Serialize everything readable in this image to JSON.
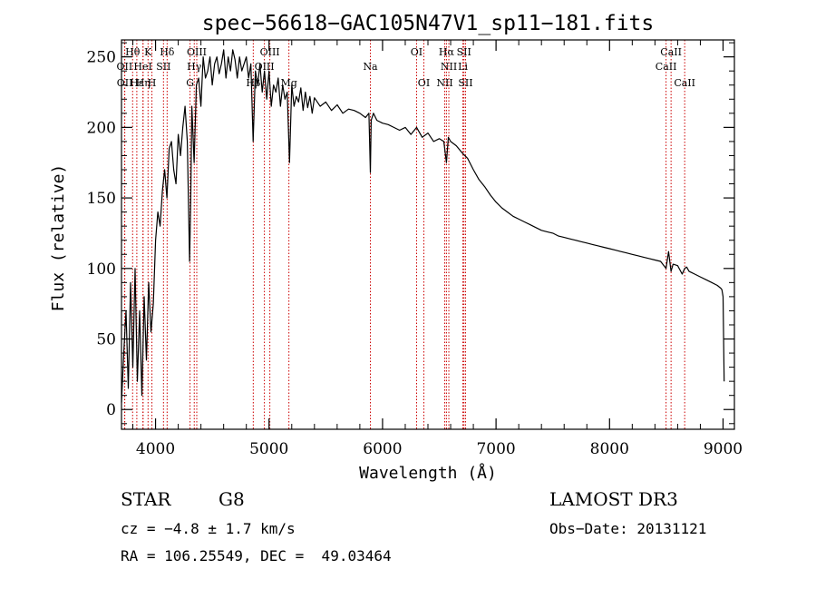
{
  "chart_data": {
    "type": "line",
    "title": "spec−56618−GAC105N47V1_sp11−181.fits",
    "xlabel": "Wavelength (Å)",
    "ylabel": "Flux (relative)",
    "xlim": [
      3700,
      9100
    ],
    "ylim": [
      -14,
      262
    ],
    "x_ticks": [
      {
        "value": 4000,
        "label": "4000"
      },
      {
        "value": 5000,
        "label": "5000"
      },
      {
        "value": 6000,
        "label": "6000"
      },
      {
        "value": 7000,
        "label": "7000"
      },
      {
        "value": 8000,
        "label": "8000"
      },
      {
        "value": 9000,
        "label": "9000"
      }
    ],
    "y_ticks": [
      {
        "value": 0,
        "label": "0"
      },
      {
        "value": 50,
        "label": "50"
      },
      {
        "value": 100,
        "label": "100"
      },
      {
        "value": 150,
        "label": "150"
      },
      {
        "value": 200,
        "label": "200"
      },
      {
        "value": 250,
        "label": "250"
      }
    ],
    "series": [
      {
        "name": "flux",
        "color": "#000000",
        "x": [
          3700,
          3720,
          3740,
          3760,
          3780,
          3800,
          3820,
          3840,
          3860,
          3880,
          3900,
          3920,
          3940,
          3960,
          3980,
          4000,
          4020,
          4040,
          4060,
          4080,
          4100,
          4120,
          4140,
          4160,
          4180,
          4200,
          4220,
          4240,
          4260,
          4280,
          4300,
          4310,
          4320,
          4340,
          4360,
          4380,
          4400,
          4420,
          4440,
          4460,
          4480,
          4500,
          4520,
          4540,
          4560,
          4580,
          4600,
          4620,
          4640,
          4660,
          4680,
          4700,
          4720,
          4740,
          4760,
          4780,
          4800,
          4820,
          4840,
          4860,
          4880,
          4900,
          4920,
          4940,
          4960,
          4980,
          5000,
          5020,
          5040,
          5060,
          5080,
          5100,
          5120,
          5140,
          5160,
          5180,
          5200,
          5220,
          5240,
          5260,
          5280,
          5300,
          5320,
          5340,
          5360,
          5380,
          5400,
          5450,
          5500,
          5550,
          5600,
          5650,
          5700,
          5750,
          5800,
          5850,
          5880,
          5893,
          5900,
          5920,
          5950,
          6000,
          6050,
          6100,
          6150,
          6200,
          6250,
          6300,
          6350,
          6400,
          6450,
          6500,
          6540,
          6563,
          6580,
          6600,
          6650,
          6700,
          6750,
          6800,
          6850,
          6900,
          6950,
          7000,
          7050,
          7100,
          7150,
          7200,
          7250,
          7300,
          7350,
          7400,
          7450,
          7500,
          7550,
          7600,
          7650,
          7700,
          7750,
          7800,
          7850,
          7900,
          7950,
          8000,
          8050,
          8100,
          8150,
          8200,
          8250,
          8300,
          8350,
          8400,
          8450,
          8498,
          8520,
          8542,
          8560,
          8600,
          8640,
          8662,
          8680,
          8700,
          8750,
          8800,
          8850,
          8900,
          8950,
          8980,
          8990,
          9000,
          9010
        ],
        "values": [
          5,
          40,
          70,
          15,
          90,
          30,
          100,
          20,
          70,
          10,
          80,
          35,
          90,
          55,
          75,
          120,
          140,
          130,
          155,
          170,
          150,
          185,
          190,
          170,
          160,
          195,
          180,
          200,
          215,
          190,
          105,
          150,
          215,
          175,
          230,
          235,
          215,
          250,
          235,
          240,
          250,
          230,
          245,
          250,
          238,
          245,
          255,
          235,
          250,
          240,
          255,
          248,
          235,
          250,
          240,
          245,
          250,
          235,
          245,
          190,
          240,
          230,
          245,
          225,
          240,
          220,
          240,
          215,
          230,
          225,
          235,
          215,
          230,
          220,
          225,
          175,
          230,
          215,
          222,
          218,
          228,
          212,
          225,
          214,
          222,
          210,
          221,
          215,
          218,
          212,
          216,
          210,
          213,
          212,
          210,
          207,
          210,
          168,
          205,
          210,
          205,
          203,
          202,
          200,
          198,
          200,
          195,
          200,
          193,
          196,
          190,
          192,
          190,
          175,
          193,
          190,
          187,
          182,
          178,
          170,
          163,
          158,
          152,
          147,
          143,
          140,
          137,
          135,
          133,
          131,
          129,
          127,
          126,
          125,
          123,
          122,
          121,
          120,
          119,
          118,
          117,
          116,
          115,
          114,
          113,
          112,
          111,
          110,
          109,
          108,
          107,
          106,
          105,
          100,
          112,
          98,
          103,
          102,
          96,
          100,
          101,
          98,
          96,
          94,
          92,
          90,
          88,
          86,
          85,
          80,
          20
        ]
      }
    ],
    "line_labels": [
      {
        "text": "Hθ",
        "x": 3798,
        "row": 1
      },
      {
        "text": "K",
        "x": 3934,
        "row": 1
      },
      {
        "text": "Hδ",
        "x": 4102,
        "row": 1
      },
      {
        "text": "OIII",
        "x": 4363,
        "row": 1
      },
      {
        "text": "OIII",
        "x": 5007,
        "row": 1
      },
      {
        "text": "OI",
        "x": 6300,
        "row": 1
      },
      {
        "text": "Hα",
        "x": 6563,
        "row": 1
      },
      {
        "text": "SII",
        "x": 6717,
        "row": 1
      },
      {
        "text": "CaII",
        "x": 8542,
        "row": 1
      },
      {
        "text": "OII",
        "x": 3727,
        "row": 2
      },
      {
        "text": "HeI",
        "x": 3889,
        "row": 2
      },
      {
        "text": "SII",
        "x": 4070,
        "row": 2
      },
      {
        "text": "Hγ",
        "x": 4341,
        "row": 2
      },
      {
        "text": "OIII",
        "x": 4959,
        "row": 2
      },
      {
        "text": "Na",
        "x": 5893,
        "row": 2
      },
      {
        "text": "NII",
        "x": 6584,
        "row": 2
      },
      {
        "text": "Li",
        "x": 6708,
        "row": 2
      },
      {
        "text": "CaII",
        "x": 8498,
        "row": 2
      },
      {
        "text": "OII",
        "x": 3729,
        "row": 3
      },
      {
        "text": "Hε",
        "x": 3835,
        "row": 3
      },
      {
        "text": "Hη",
        "x": 3890,
        "row": 3
      },
      {
        "text": "H",
        "x": 3968,
        "row": 3
      },
      {
        "text": "G",
        "x": 4304,
        "row": 3
      },
      {
        "text": "Hβ",
        "x": 4861,
        "row": 3
      },
      {
        "text": "Mg",
        "x": 5175,
        "row": 3
      },
      {
        "text": "OI",
        "x": 6364,
        "row": 3
      },
      {
        "text": "NII",
        "x": 6548,
        "row": 3
      },
      {
        "text": "SII",
        "x": 6731,
        "row": 3
      },
      {
        "text": "CaII",
        "x": 8662,
        "row": 3
      }
    ],
    "line_color": "#cc0000"
  },
  "info": {
    "object_class": "STAR",
    "subclass": "G8",
    "survey": "LAMOST DR3",
    "redshift": "cz = −4.8 ± 1.7 km/s",
    "obs_date": "Obs−Date: 20131121",
    "coords": "RA = 106.25549, DEC =  49.03464"
  }
}
